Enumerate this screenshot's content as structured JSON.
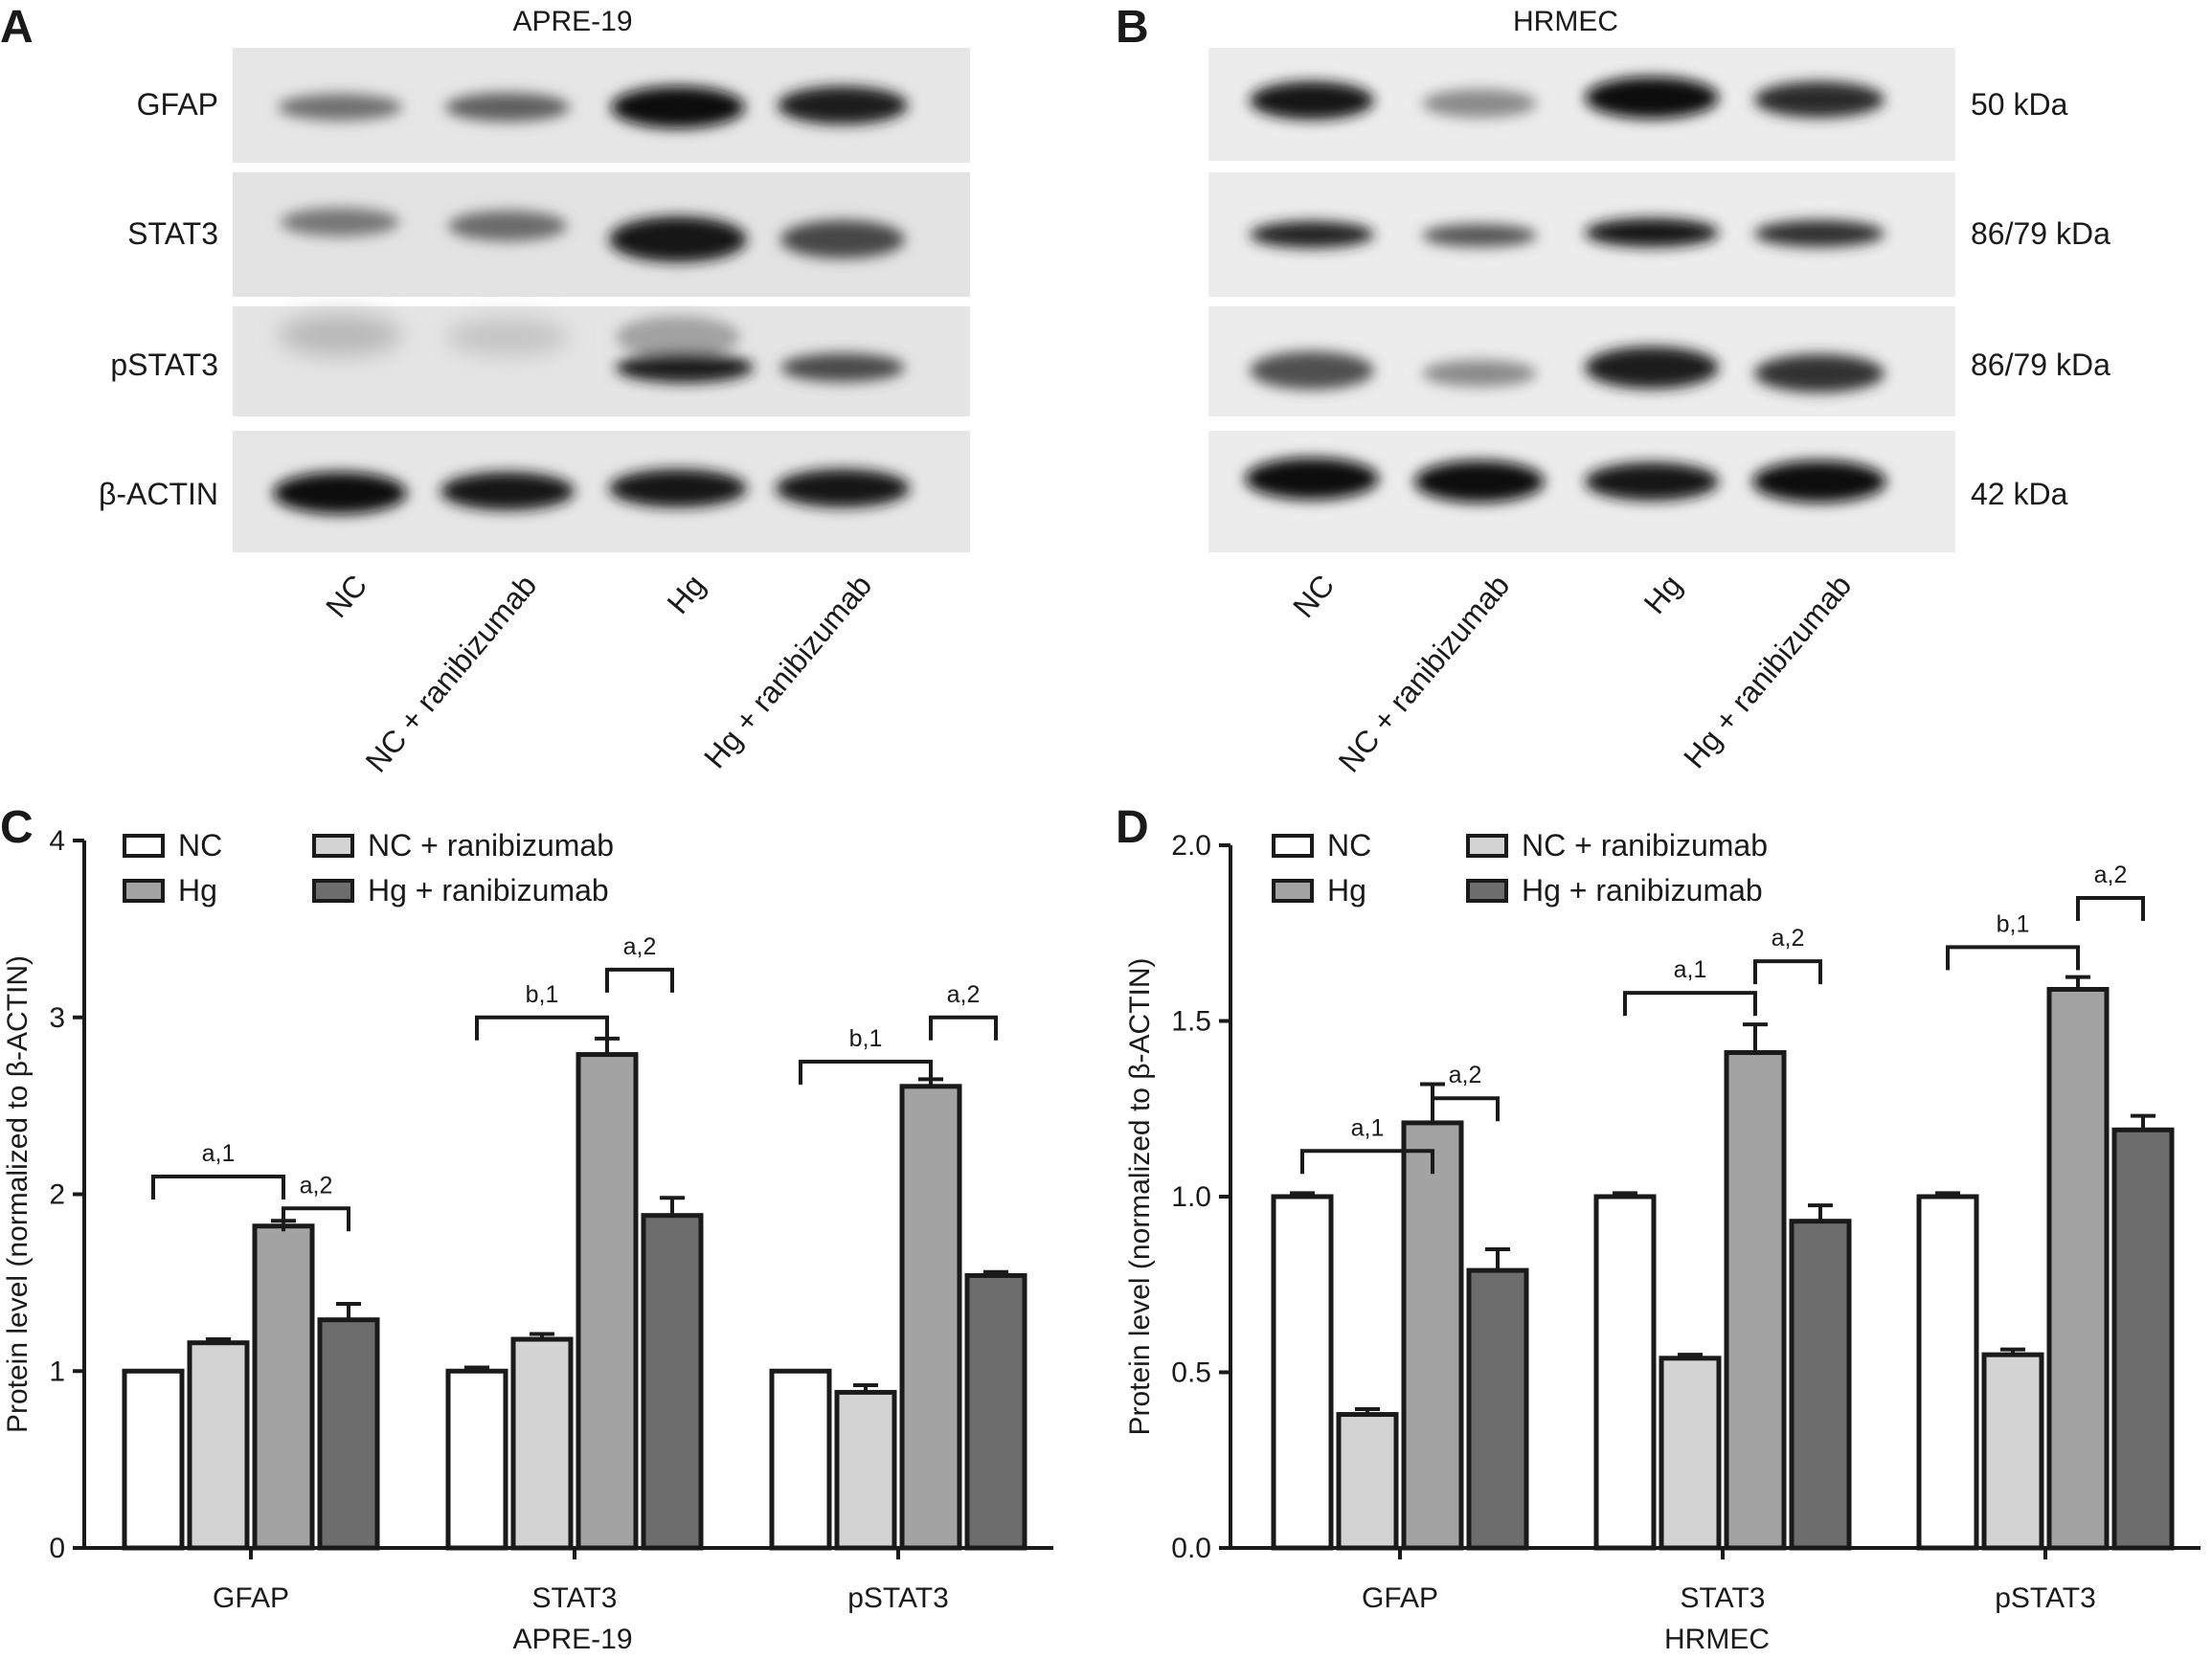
{
  "panels": {
    "A": {
      "letter": "A",
      "title": "APRE-19",
      "row_labels": [
        "GFAP",
        "STAT3",
        "pSTAT3",
        "β-ACTIN"
      ],
      "lane_labels": [
        "NC",
        "NC + ranibizumab",
        "Hg",
        "Hg + ranibizumab"
      ]
    },
    "B": {
      "letter": "B",
      "title": "HRMEC",
      "kda_labels": [
        "50 kDa",
        "86/79 kDa",
        "86/79 kDa",
        "42 kDa"
      ],
      "lane_labels": [
        "NC",
        "NC + ranibizumab",
        "Hg",
        "Hg + ranibizumab"
      ]
    }
  },
  "chart_data": [
    {
      "panel": "C",
      "type": "bar",
      "ylabel": "Protein level (normalized to β-ACTIN)",
      "xlabel": "APRE-19",
      "ylim": [
        0,
        4
      ],
      "yticks": [
        "0",
        "1",
        "2",
        "3",
        "4"
      ],
      "categories": [
        "GFAP",
        "STAT3",
        "pSTAT3"
      ],
      "series": [
        {
          "name": "NC",
          "color": "#ffffff",
          "values": [
            1.0,
            1.0,
            1.0
          ],
          "errors": [
            0.0,
            0.02,
            0.0
          ]
        },
        {
          "name": "NC + ranibizumab",
          "color": "#d3d3d3",
          "values": [
            1.16,
            1.18,
            0.88
          ],
          "errors": [
            0.02,
            0.03,
            0.04
          ]
        },
        {
          "name": "Hg",
          "color": "#a3a3a3",
          "values": [
            1.82,
            2.79,
            2.61
          ],
          "errors": [
            0.03,
            0.09,
            0.04
          ]
        },
        {
          "name": "Hg + ranibizumab",
          "color": "#6d6d6d",
          "values": [
            1.29,
            1.88,
            1.54
          ],
          "errors": [
            0.09,
            0.1,
            0.02
          ]
        }
      ],
      "legend": {
        "placement": "top",
        "entries": [
          "NC",
          "Hg",
          "NC + ranibizumab",
          "Hg + ranibizumab"
        ]
      },
      "annotations": [
        {
          "category": 0,
          "from_series": 0,
          "to_series": 2,
          "base_value": 2.1,
          "text": "a,1"
        },
        {
          "category": 0,
          "from_series": 2,
          "to_series": 3,
          "base_value": 1.92,
          "text": "a,2"
        },
        {
          "category": 1,
          "from_series": 0,
          "to_series": 2,
          "base_value": 3.0,
          "text": "b,1"
        },
        {
          "category": 1,
          "from_series": 2,
          "to_series": 3,
          "base_value": 3.27,
          "text": "a,2"
        },
        {
          "category": 2,
          "from_series": 0,
          "to_series": 2,
          "base_value": 2.75,
          "text": "b,1"
        },
        {
          "category": 2,
          "from_series": 2,
          "to_series": 3,
          "base_value": 3.0,
          "text": "a,2"
        }
      ]
    },
    {
      "panel": "D",
      "type": "bar",
      "ylabel": "Protein level (normalized to β-ACTIN)",
      "xlabel": "HRMEC",
      "ylim": [
        0,
        2.0
      ],
      "yticks": [
        "0.0",
        "0.5",
        "1.0",
        "1.5",
        "2.0"
      ],
      "categories": [
        "GFAP",
        "STAT3",
        "pSTAT3"
      ],
      "series": [
        {
          "name": "NC",
          "color": "#ffffff",
          "values": [
            1.0,
            1.0,
            1.0
          ],
          "errors": [
            0.01,
            0.01,
            0.01
          ]
        },
        {
          "name": "NC + ranibizumab",
          "color": "#d3d3d3",
          "values": [
            0.38,
            0.54,
            0.55
          ],
          "errors": [
            0.015,
            0.01,
            0.015
          ]
        },
        {
          "name": "Hg",
          "color": "#a3a3a3",
          "values": [
            1.21,
            1.41,
            1.59
          ],
          "errors": [
            0.11,
            0.08,
            0.035
          ]
        },
        {
          "name": "Hg + ranibizumab",
          "color": "#6d6d6d",
          "values": [
            0.79,
            0.93,
            1.19
          ],
          "errors": [
            0.06,
            0.045,
            0.04
          ]
        }
      ],
      "legend": {
        "placement": "top",
        "entries": [
          "NC",
          "Hg",
          "NC + ranibizumab",
          "Hg + ranibizumab"
        ]
      },
      "annotations": [
        {
          "category": 0,
          "from_series": 0,
          "to_series": 2,
          "base_value": 1.13,
          "text": "a,1"
        },
        {
          "category": 0,
          "from_series": 2,
          "to_series": 3,
          "base_value": 1.28,
          "text": "a,2"
        },
        {
          "category": 1,
          "from_series": 0,
          "to_series": 2,
          "base_value": 1.58,
          "text": "a,1"
        },
        {
          "category": 1,
          "from_series": 2,
          "to_series": 3,
          "base_value": 1.67,
          "text": "a,2"
        },
        {
          "category": 2,
          "from_series": 0,
          "to_series": 2,
          "base_value": 1.71,
          "text": "b,1"
        },
        {
          "category": 2,
          "from_series": 2,
          "to_series": 3,
          "base_value": 1.85,
          "text": "a,2"
        }
      ]
    }
  ]
}
